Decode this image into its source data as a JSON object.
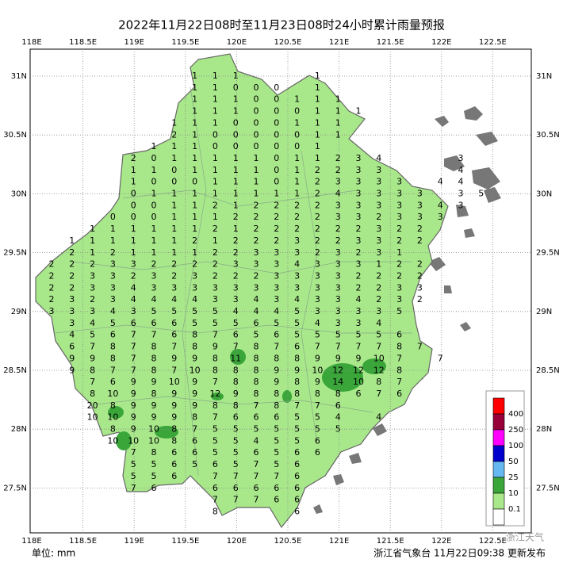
{
  "map": {
    "title": "2022年11月22日08时至11月23日08时24小时累计雨量预报",
    "lon_ticks": [
      "118E",
      "118.5E",
      "119E",
      "119.5E",
      "120E",
      "120.5E",
      "121E",
      "121.5E",
      "122E",
      "122.5E"
    ],
    "lat_ticks": [
      "31N",
      "30.5N",
      "30N",
      "29.5N",
      "29N",
      "28.5N",
      "28N",
      "27.5N"
    ],
    "legend": {
      "labels": [
        400,
        250,
        100,
        50,
        25,
        10,
        0.1
      ],
      "colors": [
        "#ff0000",
        "#99003a",
        "#ff00ff",
        "#0000cc",
        "#66b8f0",
        "#3aa63a",
        "#a8e88a",
        "#ffffff"
      ]
    },
    "unit": "单位: mm",
    "footer": "浙江省气象台 11月22日09:38 更新发布",
    "watermark": "浙江天气",
    "grid": [
      [
        null,
        null,
        null,
        null,
        null,
        null,
        null,
        1,
        1,
        1,
        null,
        null,
        null,
        1,
        null,
        null,
        null,
        null,
        null,
        null,
        null,
        null,
        null
      ],
      [
        null,
        null,
        null,
        null,
        null,
        null,
        null,
        1,
        1,
        0,
        0,
        0,
        null,
        1,
        null,
        null,
        null,
        null,
        null,
        null,
        null,
        null,
        null
      ],
      [
        null,
        null,
        null,
        null,
        null,
        null,
        null,
        1,
        1,
        1,
        0,
        0,
        1,
        1,
        1,
        null,
        null,
        null,
        null,
        null,
        null,
        null,
        null
      ],
      [
        null,
        null,
        null,
        null,
        null,
        null,
        null,
        1,
        1,
        1,
        0,
        0,
        0,
        1,
        1,
        1,
        null,
        null,
        null,
        null,
        null,
        null,
        null
      ],
      [
        null,
        null,
        null,
        null,
        null,
        null,
        1,
        1,
        1,
        0,
        0,
        0,
        1,
        1,
        1,
        null,
        null,
        null,
        null,
        null,
        null,
        null,
        null
      ],
      [
        null,
        null,
        null,
        null,
        null,
        null,
        2,
        1,
        0,
        0,
        0,
        0,
        0,
        1,
        1,
        null,
        null,
        null,
        null,
        null,
        null,
        null,
        null
      ],
      [
        null,
        null,
        null,
        null,
        null,
        1,
        1,
        1,
        0,
        0,
        0,
        0,
        0,
        1,
        null,
        null,
        null,
        null,
        null,
        null,
        null,
        null,
        null
      ],
      [
        null,
        null,
        null,
        null,
        2,
        0,
        1,
        1,
        1,
        1,
        1,
        0,
        1,
        1,
        2,
        3,
        4,
        null,
        null,
        null,
        3,
        null,
        null
      ],
      [
        null,
        null,
        null,
        null,
        1,
        1,
        0,
        1,
        1,
        1,
        1,
        0,
        1,
        2,
        2,
        3,
        3,
        null,
        null,
        null,
        4,
        null,
        null
      ],
      [
        null,
        null,
        null,
        null,
        1,
        0,
        0,
        0,
        1,
        1,
        1,
        0,
        1,
        2,
        3,
        3,
        3,
        3,
        null,
        4,
        4,
        null,
        null
      ],
      [
        null,
        null,
        null,
        null,
        0,
        1,
        1,
        1,
        1,
        1,
        1,
        1,
        1,
        2,
        4,
        3,
        3,
        3,
        3,
        null,
        3,
        5,
        null
      ],
      [
        null,
        null,
        null,
        null,
        0,
        0,
        1,
        1,
        2,
        1,
        2,
        2,
        2,
        2,
        3,
        3,
        3,
        3,
        3,
        4,
        3,
        null,
        null
      ],
      [
        null,
        null,
        null,
        0,
        0,
        0,
        1,
        1,
        1,
        2,
        2,
        2,
        2,
        2,
        3,
        3,
        2,
        3,
        3,
        3,
        null,
        null,
        null
      ],
      [
        null,
        null,
        1,
        1,
        1,
        1,
        1,
        1,
        2,
        1,
        2,
        2,
        2,
        2,
        2,
        2,
        3,
        2,
        2,
        null,
        null,
        null,
        null
      ],
      [
        null,
        1,
        1,
        1,
        1,
        1,
        1,
        2,
        1,
        2,
        2,
        2,
        3,
        2,
        2,
        3,
        3,
        2,
        2,
        null,
        null,
        null,
        null
      ],
      [
        null,
        2,
        1,
        2,
        1,
        1,
        1,
        1,
        2,
        2,
        3,
        3,
        3,
        2,
        3,
        2,
        3,
        1,
        null,
        null,
        null,
        null,
        null
      ],
      [
        2,
        2,
        2,
        3,
        3,
        2,
        2,
        2,
        2,
        3,
        3,
        3,
        4,
        3,
        3,
        3,
        1,
        2,
        2,
        null,
        null,
        null,
        null
      ],
      [
        2,
        2,
        3,
        3,
        2,
        3,
        2,
        3,
        2,
        2,
        2,
        3,
        3,
        3,
        3,
        2,
        2,
        2,
        2,
        null,
        null,
        null,
        null
      ],
      [
        2,
        2,
        3,
        3,
        4,
        3,
        3,
        3,
        3,
        3,
        3,
        3,
        3,
        3,
        3,
        2,
        2,
        3,
        3,
        null,
        null,
        null,
        null
      ],
      [
        2,
        3,
        2,
        3,
        4,
        4,
        4,
        4,
        3,
        3,
        4,
        3,
        4,
        3,
        3,
        4,
        2,
        3,
        2,
        null,
        null,
        null,
        null
      ],
      [
        3,
        3,
        3,
        4,
        3,
        5,
        5,
        5,
        5,
        4,
        4,
        4,
        5,
        3,
        3,
        3,
        3,
        5,
        null,
        null,
        null,
        null,
        null
      ],
      [
        null,
        3,
        4,
        5,
        6,
        6,
        6,
        5,
        5,
        5,
        6,
        5,
        5,
        4,
        3,
        3,
        4,
        null,
        null,
        null,
        null,
        null,
        null
      ],
      [
        null,
        4,
        5,
        6,
        7,
        7,
        6,
        8,
        7,
        6,
        5,
        6,
        5,
        5,
        5,
        5,
        5,
        6,
        null,
        null,
        null,
        null,
        null
      ],
      [
        null,
        6,
        7,
        8,
        7,
        8,
        7,
        8,
        9,
        7,
        8,
        7,
        6,
        7,
        7,
        7,
        7,
        8,
        7,
        null,
        null,
        null,
        null
      ],
      [
        null,
        9,
        9,
        8,
        7,
        8,
        9,
        9,
        8,
        11,
        8,
        8,
        8,
        9,
        9,
        9,
        10,
        7,
        null,
        7,
        null,
        null,
        null
      ],
      [
        null,
        9,
        8,
        7,
        7,
        8,
        7,
        10,
        8,
        8,
        8,
        9,
        9,
        10,
        12,
        12,
        12,
        8,
        null,
        null,
        null,
        null,
        null
      ],
      [
        null,
        null,
        7,
        6,
        9,
        9,
        10,
        9,
        7,
        8,
        8,
        9,
        8,
        9,
        14,
        10,
        8,
        7,
        null,
        null,
        null,
        null,
        null
      ],
      [
        null,
        null,
        8,
        10,
        9,
        8,
        9,
        9,
        12,
        9,
        8,
        8,
        8,
        8,
        8,
        6,
        7,
        6,
        null,
        null,
        null,
        null,
        null
      ],
      [
        null,
        null,
        20,
        8,
        9,
        9,
        9,
        9,
        8,
        8,
        7,
        8,
        7,
        7,
        6,
        null,
        null,
        null,
        null,
        null,
        null,
        null,
        null
      ],
      [
        null,
        null,
        10,
        10,
        9,
        9,
        9,
        8,
        7,
        6,
        6,
        6,
        5,
        5,
        4,
        null,
        4,
        null,
        null,
        null,
        null,
        null,
        null
      ],
      [
        null,
        null,
        null,
        8,
        9,
        10,
        8,
        7,
        5,
        5,
        5,
        5,
        5,
        5,
        5,
        null,
        null,
        null,
        null,
        null,
        null,
        null,
        null
      ],
      [
        null,
        null,
        null,
        10,
        10,
        10,
        8,
        6,
        5,
        5,
        4,
        5,
        5,
        6,
        null,
        null,
        null,
        null,
        null,
        null,
        null,
        null,
        null
      ],
      [
        null,
        null,
        null,
        null,
        7,
        8,
        6,
        6,
        5,
        5,
        6,
        5,
        6,
        6,
        null,
        null,
        null,
        null,
        null,
        null,
        null,
        null,
        null
      ],
      [
        null,
        null,
        null,
        null,
        5,
        5,
        6,
        5,
        6,
        5,
        7,
        5,
        6,
        null,
        null,
        null,
        null,
        null,
        null,
        null,
        null,
        null,
        null
      ],
      [
        null,
        null,
        null,
        null,
        5,
        5,
        6,
        null,
        7,
        7,
        7,
        7,
        6,
        null,
        null,
        null,
        null,
        null,
        null,
        null,
        null,
        null,
        null
      ],
      [
        null,
        null,
        null,
        null,
        7,
        6,
        null,
        null,
        6,
        6,
        6,
        6,
        6,
        null,
        null,
        null,
        null,
        null,
        null,
        null,
        null,
        null,
        null
      ],
      [
        null,
        null,
        null,
        null,
        null,
        null,
        null,
        null,
        7,
        7,
        7,
        6,
        6,
        null,
        null,
        null,
        null,
        null,
        null,
        null,
        null,
        null,
        null
      ],
      [
        null,
        null,
        null,
        null,
        null,
        null,
        null,
        null,
        8,
        null,
        null,
        null,
        6,
        null,
        null,
        null,
        null,
        null,
        null,
        null,
        null,
        null,
        null
      ]
    ]
  }
}
